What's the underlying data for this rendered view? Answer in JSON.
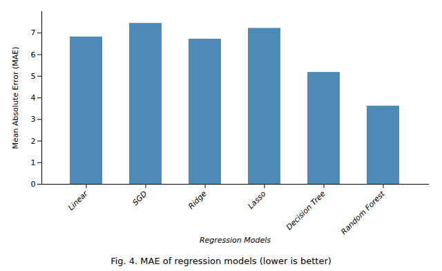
{
  "chart_data": {
    "type": "bar",
    "categories": [
      "Linear",
      "SGD",
      "Ridge",
      "Lasso",
      "Decision Tree",
      "Random Forest"
    ],
    "values": [
      6.82,
      7.45,
      6.72,
      7.22,
      5.18,
      3.62
    ],
    "color": "#4d8ab5",
    "xlabel": "Regression Models",
    "ylabel": "Mean Absolute Error (MAE)",
    "ylim": [
      0,
      8.0
    ],
    "yticks": [
      0,
      1,
      2,
      3,
      4,
      5,
      6,
      7
    ],
    "caption": "Fig. 4.  MAE of regression models (lower is better)",
    "grid": false
  }
}
